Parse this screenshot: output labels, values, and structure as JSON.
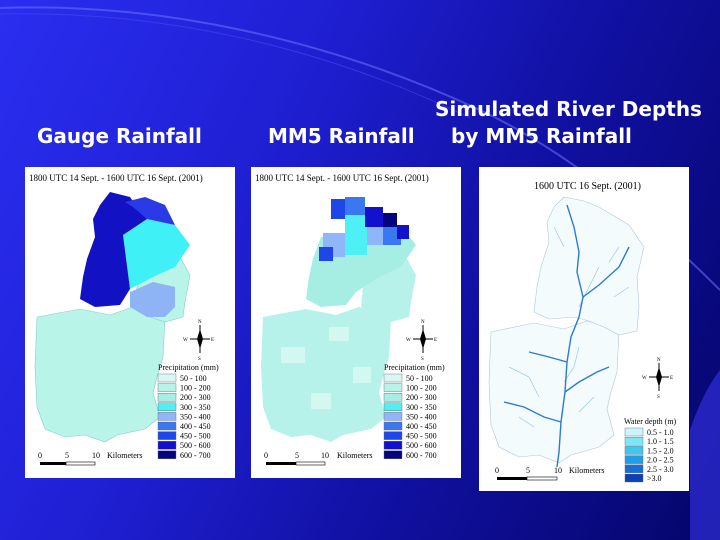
{
  "titles": {
    "gauge": "Gauge Rainfall",
    "mm5": "MM5 Rainfall",
    "depth_line1": "Simulated River Depths",
    "depth_line2": "by MM5 Rainfall"
  },
  "maps": {
    "gauge": {
      "timestamp": "1800 UTC 14 Sept. - 1600 UTC 16 Sept. (2001)",
      "legend_title": "Precipitation (mm)",
      "legend": [
        "50 - 100",
        "100 - 200",
        "200 - 300",
        "300 - 350",
        "350 - 400",
        "400 - 450",
        "450 - 500",
        "500 - 600",
        "600 - 700"
      ],
      "scale": {
        "ticks": [
          "0",
          "5",
          "10"
        ],
        "unit": "Kilometers"
      }
    },
    "mm5": {
      "timestamp": "1800 UTC 14 Sept. - 1600 UTC 16 Sept. (2001)",
      "legend_title": "Precipitation (mm)",
      "legend": [
        "50 - 100",
        "100 - 200",
        "200 - 300",
        "300 - 350",
        "350 - 400",
        "400 - 450",
        "450 - 500",
        "500 - 600",
        "600 - 700"
      ],
      "scale": {
        "ticks": [
          "0",
          "5",
          "10"
        ],
        "unit": "Kilometers"
      }
    },
    "depth": {
      "timestamp": "1600 UTC 16 Sept. (2001)",
      "legend_title": "Water depth (m)",
      "legend": [
        "0.5 - 1.0",
        "1.0 - 1.5",
        "1.5 - 2.0",
        "2.0 - 2.5",
        "2.5 - 3.0",
        ">3.0"
      ],
      "scale": {
        "ticks": [
          "0",
          "5",
          "10"
        ],
        "unit": "Kilometers"
      }
    }
  },
  "compass": {
    "n": "N",
    "s": "S",
    "e": "E",
    "w": "W"
  },
  "colors": {
    "precip": [
      "#d8f7f2",
      "#b8f2e8",
      "#a6ede3",
      "#4cf0f5",
      "#8fb6f8",
      "#3a78f2",
      "#1e46e8",
      "#1212cc",
      "#04047e"
    ],
    "depth": [
      "#c8f4fa",
      "#7fe6f6",
      "#3cc8f0",
      "#1e9ee8",
      "#1670d8",
      "#1040b8"
    ]
  }
}
